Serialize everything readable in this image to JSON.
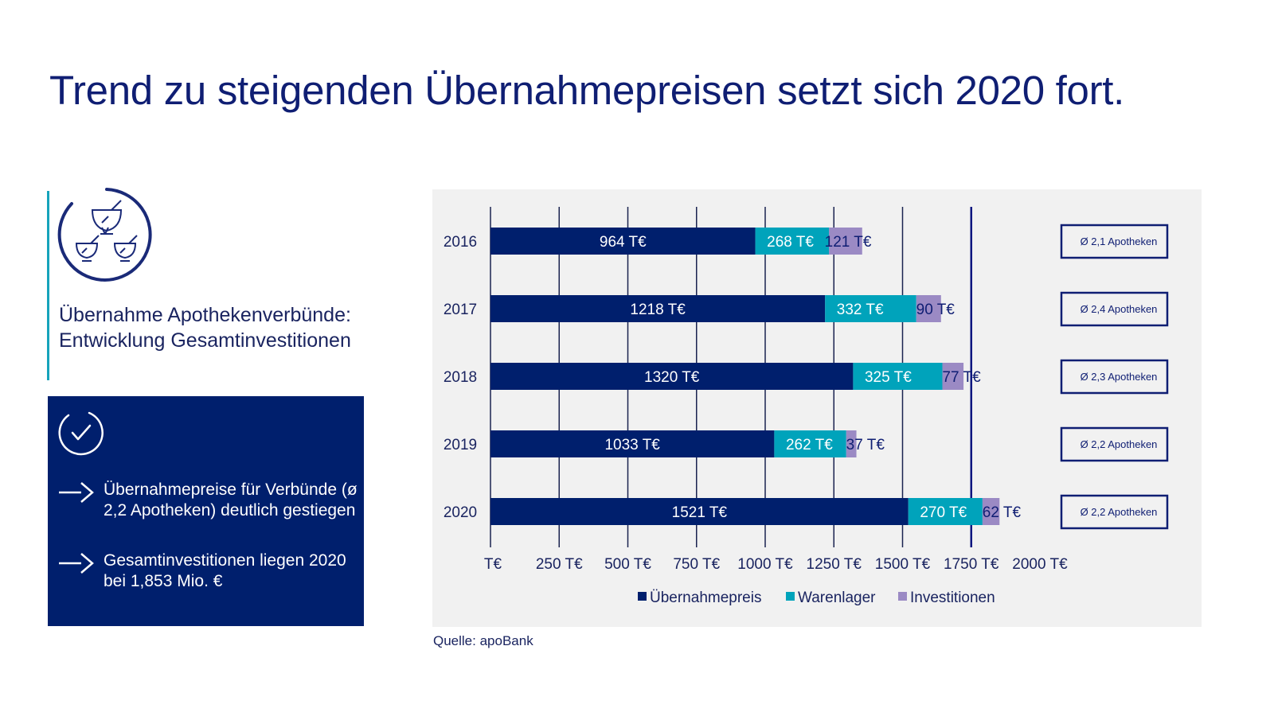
{
  "page": {
    "title": "Trend zu steigenden Übernahmepreisen setzt sich 2020 fort.",
    "subtitle_line1": "Übernahme Apothekenverbünde:",
    "subtitle_line2": "Entwicklung Gesamtinvestitionen",
    "icons": {
      "header_icon": "mortar-and-pestle-icon",
      "box_icon": "check-circle-icon",
      "bullet_icon": "arrow-right-icon"
    },
    "info_box": {
      "bullets": [
        "Übernahmepreise für Verbünde (ø 2,2 Apotheken) deutlich gestiegen",
        "Gesamtinvestitionen liegen 2020 bei 1,853 Mio. €"
      ]
    },
    "source": "Quelle: apoBank",
    "colors": {
      "title": "#0f1e73",
      "accent": "#16a3bb",
      "box_bg": "#001f6d",
      "panel_bg": "#f1f1f1"
    }
  },
  "chart_data": {
    "type": "bar",
    "orientation": "horizontal",
    "stacked": true,
    "title": "Übernahme Apothekenverbünde: Entwicklung Gesamtinvestitionen",
    "xlabel": "",
    "ylabel": "",
    "xlim": [
      0,
      2000
    ],
    "x_ticks": [
      0,
      250,
      500,
      750,
      1000,
      1250,
      1500,
      1750,
      2000
    ],
    "x_tick_labels": [
      "T€",
      "250 T€",
      "500 T€",
      "750 T€",
      "1000 T€",
      "1250 T€",
      "1500 T€",
      "1750 T€",
      "2000 T€"
    ],
    "grid": true,
    "highlight_gridline": 1750,
    "categories": [
      "2016",
      "2017",
      "2018",
      "2019",
      "2020"
    ],
    "series": [
      {
        "name": "Übernahmepreis",
        "color": "#001f6d",
        "label_color": "#ffffff",
        "values": [
          964,
          1218,
          1320,
          1033,
          1521
        ],
        "labels": [
          "964 T€",
          "1218 T€",
          "1320 T€",
          "1033 T€",
          "1521 T€"
        ]
      },
      {
        "name": "Warenlager",
        "color": "#00a3bb",
        "label_color": "#ffffff",
        "values": [
          268,
          332,
          325,
          262,
          270
        ],
        "labels": [
          "268 T€",
          "332 T€",
          "325 T€",
          "262 T€",
          "270 T€"
        ]
      },
      {
        "name": "Investitionen",
        "color": "#9b8ac4",
        "label_color": "#0f1e73",
        "values": [
          121,
          90,
          77,
          37,
          62
        ],
        "labels": [
          "121 T€",
          "90 T€",
          "77 T€",
          "37 T€",
          "62 T€"
        ]
      }
    ],
    "annotations": [
      "Ø 2,1 Apotheken",
      "Ø 2,4 Apotheken",
      "Ø 2,3 Apotheken",
      "Ø 2,2 Apotheken",
      "Ø 2,2 Apotheken"
    ],
    "legend": {
      "position": "bottom",
      "entries": [
        "Übernahmepreis",
        "Warenlager",
        "Investitionen"
      ]
    }
  }
}
